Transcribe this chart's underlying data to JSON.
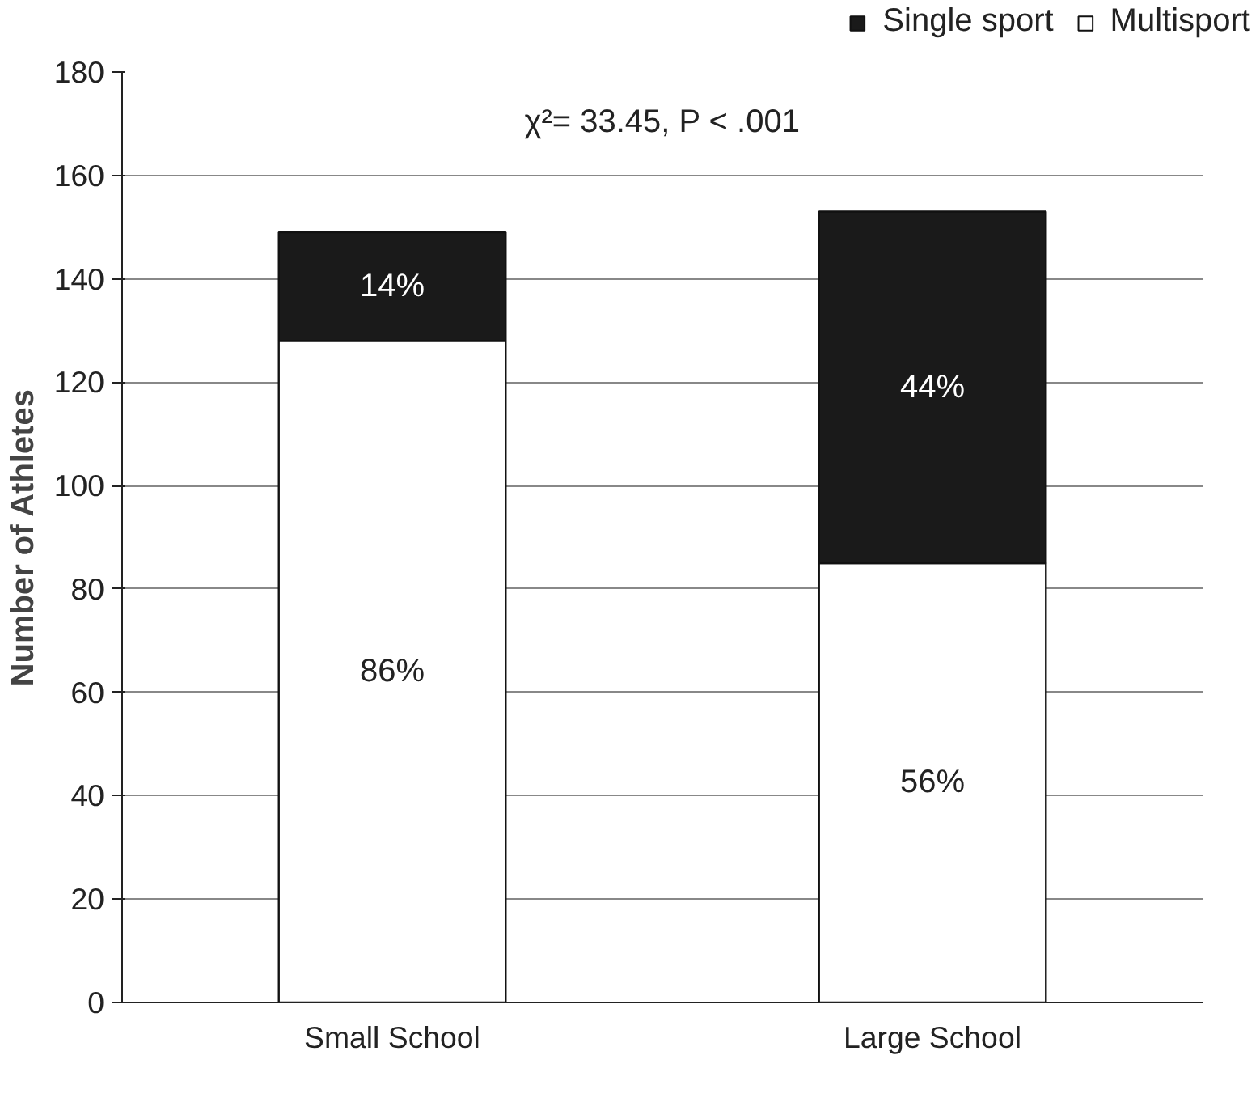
{
  "chart_data": {
    "type": "bar",
    "stacked": true,
    "ylabel": "Number of Athletes",
    "categories": [
      "Small School",
      "Large School"
    ],
    "series": [
      {
        "name": "Multisport",
        "color": "#ffffff",
        "values": [
          128,
          85
        ]
      },
      {
        "name": "Single sport",
        "color": "#1a1a1a",
        "values": [
          21,
          68
        ]
      }
    ],
    "ylim": [
      0,
      180
    ],
    "yticks": [
      0,
      20,
      40,
      60,
      80,
      100,
      120,
      140,
      160,
      180
    ],
    "grid": "y",
    "legend": "top right",
    "annotations": [
      "χ²= 33.45, P < .001",
      "86%",
      "56%",
      "14%",
      "44%"
    ]
  }
}
